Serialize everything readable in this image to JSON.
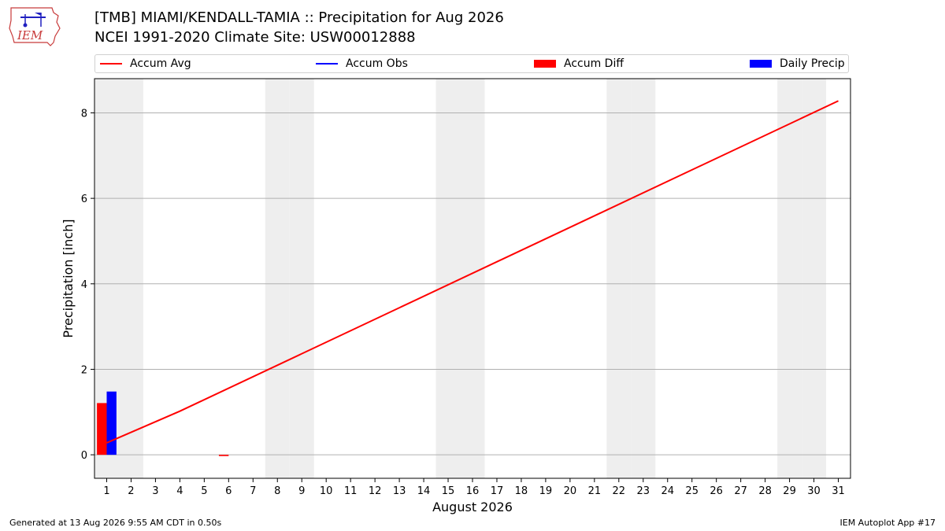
{
  "header": {
    "logo_text": "IEM",
    "title_line1": "[TMB] MIAMI/KENDALL-TAMIA :: Precipitation for Aug 2026",
    "title_line2": "NCEI 1991-2020 Climate Site: USW00012888"
  },
  "footer": {
    "left": "Generated at 13 Aug 2026 9:55 AM CDT in 0.50s",
    "right": "IEM Autoplot App #17"
  },
  "chart_data": {
    "type": "bar",
    "title": "[TMB] MIAMI/KENDALL-TAMIA :: Precipitation for Aug 2026",
    "subtitle": "NCEI 1991-2020 Climate Site: USW00012888",
    "xlabel": "August 2026",
    "ylabel": "Precipitation [inch]",
    "x_ticks": [
      "1",
      "2",
      "3",
      "4",
      "5",
      "6",
      "7",
      "8",
      "9",
      "10",
      "11",
      "12",
      "13",
      "14",
      "15",
      "16",
      "17",
      "18",
      "19",
      "20",
      "21",
      "22",
      "23",
      "24",
      "25",
      "26",
      "27",
      "28",
      "29",
      "30",
      "31"
    ],
    "y_ticks": [
      "0",
      "2",
      "4",
      "6",
      "8"
    ],
    "xlim": [
      0.5,
      31.5
    ],
    "ylim": [
      -0.55,
      8.8
    ],
    "grid": "y",
    "legend_position": "top",
    "weekend_shading_days": [
      1,
      2,
      8,
      9,
      15,
      16,
      22,
      23,
      29,
      30
    ],
    "series": [
      {
        "name": "Accum Avg",
        "kind": "line",
        "color": "#ff0000",
        "x": [
          1,
          4,
          31
        ],
        "y": [
          0.28,
          1.02,
          8.28
        ]
      },
      {
        "name": "Accum Obs",
        "kind": "line",
        "color": "#0000ff",
        "x": [],
        "y": []
      },
      {
        "name": "Accum Diff",
        "kind": "bar",
        "color": "#ff0000",
        "x": [
          1,
          6
        ],
        "y": [
          1.21,
          -0.03
        ]
      },
      {
        "name": "Daily Precip",
        "kind": "bar",
        "color": "#0000ff",
        "x": [
          1
        ],
        "y": [
          1.48
        ]
      }
    ]
  }
}
